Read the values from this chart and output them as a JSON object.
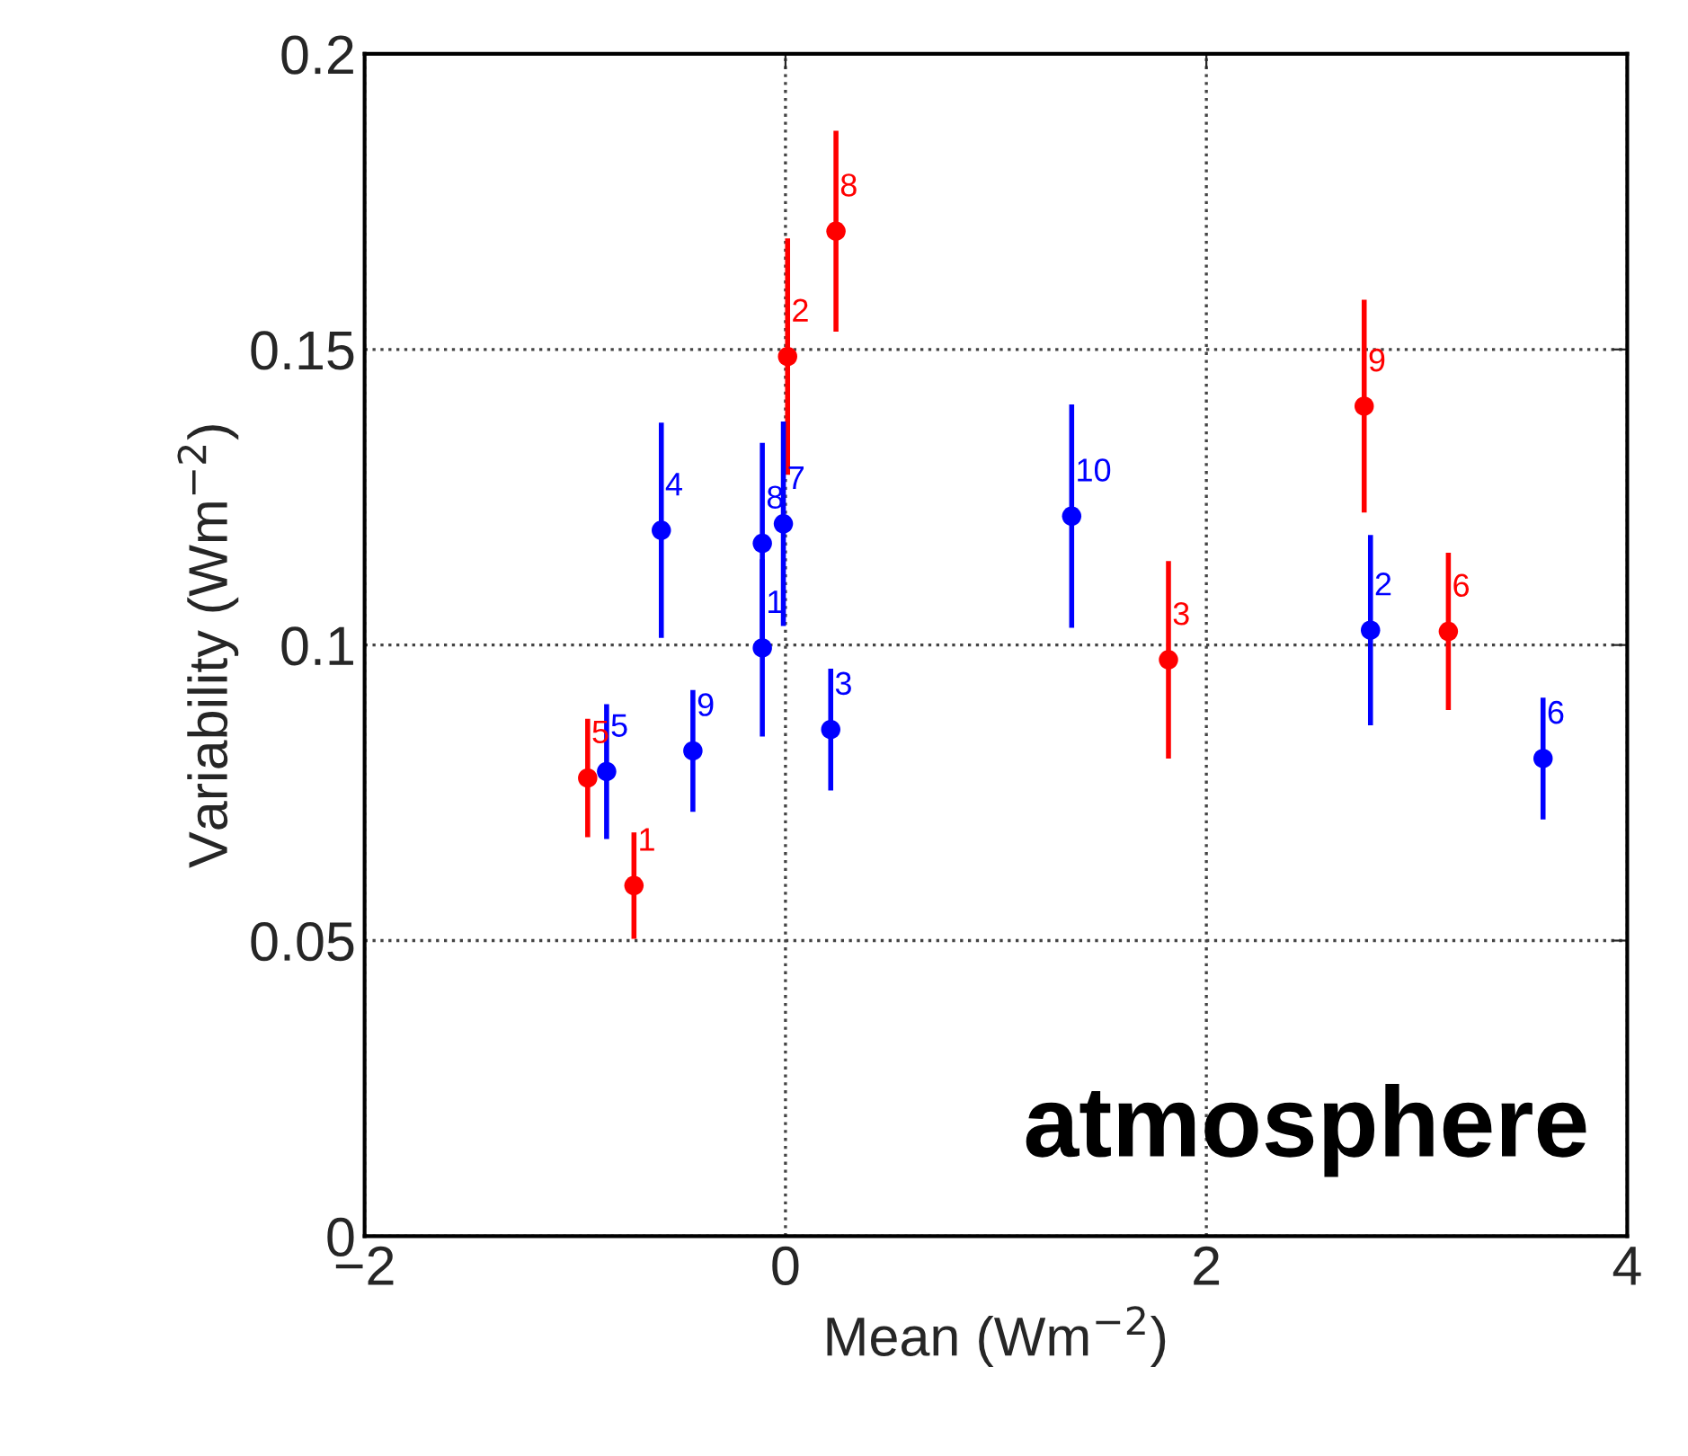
{
  "chart_data": {
    "type": "scatter",
    "xlabel": "Mean (Wm$^{−2}$)",
    "ylabel": "Variability (Wm$^{−2}$)",
    "xlim": [
      -2,
      4
    ],
    "xticks": [
      {
        "value": -2,
        "label": "−2"
      },
      0,
      2,
      4
    ],
    "ylim": [
      0,
      0.2
    ],
    "yticks": [
      0,
      0.05,
      0.1,
      0.15,
      0.2
    ],
    "grid": true,
    "marker": "circle",
    "series": [
      {
        "color": "#ff0000",
        "x": [
          -0.94,
          -0.72,
          0.01,
          0.24,
          2.75,
          1.82,
          3.15
        ],
        "values": [
          0.0775,
          0.0593,
          0.1488,
          0.17,
          0.1404,
          0.0975,
          0.1023
        ],
        "errors": [
          0.01,
          0.009,
          0.02,
          0.017,
          0.018,
          0.0167,
          0.0133
        ]
      },
      {
        "color": "#0000ff",
        "x": [
          -0.85,
          -0.44,
          -0.59,
          -0.11,
          -0.11,
          -0.01,
          0.215,
          1.36,
          2.78,
          3.6
        ],
        "values": [
          0.0786,
          0.0821,
          0.1194,
          0.1172,
          0.0995,
          0.1205,
          0.0857,
          0.1218,
          0.1025,
          0.0808
        ],
        "errors": [
          0.0114,
          0.0103,
          0.0182,
          0.017,
          0.015,
          0.0173,
          0.0103,
          0.0189,
          0.0161,
          0.0103
        ]
      }
    ],
    "annotations": [
      {
        "text": "5",
        "x": -0.94,
        "y": 0.0775
      },
      {
        "text": "1",
        "x": -0.72,
        "y": 0.0593
      },
      {
        "text": "2",
        "x": 0.01,
        "y": 0.1488
      },
      {
        "text": "8",
        "x": 0.24,
        "y": 0.17
      },
      {
        "text": "9",
        "x": 2.75,
        "y": 0.1404
      },
      {
        "text": "3",
        "x": 1.82,
        "y": 0.0975
      },
      {
        "text": "6",
        "x": 3.15,
        "y": 0.1023
      },
      {
        "text": "5",
        "x": -0.85,
        "y": 0.0786
      },
      {
        "text": "9",
        "x": -0.44,
        "y": 0.0821
      },
      {
        "text": "4",
        "x": -0.59,
        "y": 0.1194
      },
      {
        "text": "8",
        "x": -0.11,
        "y": 0.1172
      },
      {
        "text": "1",
        "x": -0.11,
        "y": 0.0995
      },
      {
        "text": "7",
        "x": -0.01,
        "y": 0.1205
      },
      {
        "text": "3",
        "x": 0.215,
        "y": 0.0857
      },
      {
        "text": "10",
        "x": 1.36,
        "y": 0.1218
      },
      {
        "text": "2",
        "x": 2.78,
        "y": 0.1025
      },
      {
        "text": "6",
        "x": 3.6,
        "y": 0.0808
      },
      "atmosphere"
    ]
  }
}
